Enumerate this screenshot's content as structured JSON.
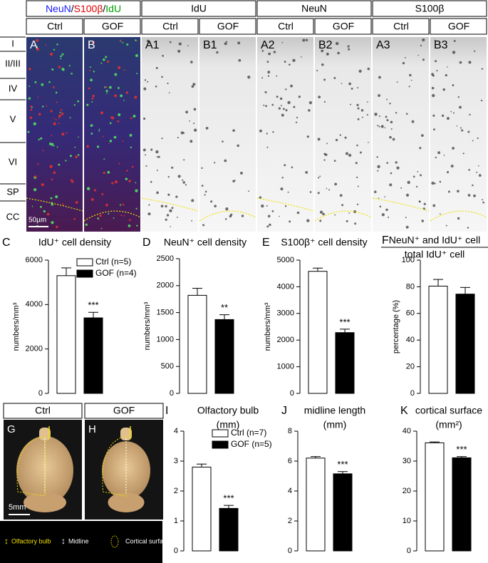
{
  "figure": {
    "merge_header": [
      {
        "text": "NeuN",
        "color": "#1a1aff"
      },
      {
        "text": "/",
        "color": "#000000"
      },
      {
        "text": "S100β",
        "color": "#e00000"
      },
      {
        "text": "/",
        "color": "#000000"
      },
      {
        "text": "IdU",
        "color": "#00a000"
      }
    ],
    "headers": [
      "IdU",
      "NeuN",
      "S100β"
    ],
    "conditions": [
      "Ctrl",
      "GOF",
      "Ctrl",
      "GOF",
      "Ctrl",
      "GOF",
      "Ctrl",
      "GOF"
    ],
    "layers": [
      "I",
      "II/III",
      "IV",
      "V",
      "VI",
      "SP",
      "CC"
    ],
    "panels": [
      "A",
      "B",
      "A1",
      "B1",
      "A2",
      "B2",
      "A3",
      "B3"
    ],
    "scale_bar": "50µm",
    "brain": {
      "conditions": [
        "Ctrl",
        "GOF"
      ],
      "panels": [
        "G",
        "H"
      ],
      "scale_bar": "5mm",
      "legend": [
        {
          "symbol": "↕",
          "text": "Olfactory bulb",
          "color": "#f0e000"
        },
        {
          "symbol": "↕",
          "text": "Midline",
          "color": "#ffffff"
        },
        {
          "text": "Cortical surface",
          "color": "#f0e000"
        }
      ]
    }
  },
  "chart_data": [
    {
      "type": "bar",
      "panel": "C",
      "title": "IdU⁺ cell density",
      "y_label": "numbers/mm³",
      "ylim": [
        0,
        6000
      ],
      "yticks": [
        0,
        2000,
        4000,
        6000
      ],
      "series": [
        {
          "name": "Ctrl (n=5)",
          "color": "#ffffff",
          "values": [
            5300
          ],
          "errors": [
            350
          ]
        },
        {
          "name": "GOF (n=4)",
          "color": "#000000",
          "values": [
            3400
          ],
          "errors": [
            250
          ]
        }
      ],
      "annotations": [
        "***"
      ]
    },
    {
      "type": "bar",
      "panel": "D",
      "title": "NeuN⁺ cell density",
      "y_label": "numbers/mm³",
      "ylim": [
        0,
        2500
      ],
      "yticks": [
        0,
        500,
        1000,
        1500,
        2000,
        2500
      ],
      "values": [
        1820,
        1370
      ],
      "errors": [
        130,
        90
      ],
      "colors": [
        "#ffffff",
        "#000000"
      ],
      "annotations": [
        "**"
      ]
    },
    {
      "type": "bar",
      "panel": "E",
      "title": "S100β⁺ cell density",
      "y_label": "numbers/mm³",
      "ylim": [
        0,
        5000
      ],
      "yticks": [
        0,
        1000,
        2000,
        3000,
        4000,
        5000
      ],
      "values": [
        4580,
        2280
      ],
      "errors": [
        120,
        130
      ],
      "colors": [
        "#ffffff",
        "#000000"
      ],
      "annotations": [
        "***"
      ]
    },
    {
      "type": "bar",
      "panel": "F",
      "title": "NeuN⁺ and IdU⁺ cell",
      "subtitle": "total IdU⁺ cell",
      "y_label": "percentage (%)",
      "ylim": [
        0,
        100
      ],
      "yticks": [
        0,
        20,
        40,
        60,
        80,
        100
      ],
      "values": [
        80.5,
        74.5
      ],
      "errors": [
        5,
        5
      ],
      "colors": [
        "#ffffff",
        "#000000"
      ]
    },
    {
      "type": "bar",
      "panel": "I",
      "title": "Olfactory bulb",
      "subtitle": "(mm)",
      "ylim": [
        0,
        4
      ],
      "yticks": [
        0,
        1,
        2,
        3,
        4
      ],
      "series": [
        {
          "name": "Ctrl (n=7)",
          "color": "#ffffff",
          "values": [
            2.8
          ],
          "errors": [
            0.1
          ]
        },
        {
          "name": "GOF (n=5)",
          "color": "#000000",
          "values": [
            1.42
          ],
          "errors": [
            0.1
          ]
        }
      ],
      "annotations": [
        "***"
      ]
    },
    {
      "type": "bar",
      "panel": "J",
      "title": "midline length",
      "subtitle": "(mm)",
      "ylim": [
        0,
        8
      ],
      "yticks": [
        0,
        2,
        4,
        6,
        8
      ],
      "values": [
        6.2,
        5.15
      ],
      "errors": [
        0.1,
        0.15
      ],
      "colors": [
        "#ffffff",
        "#000000"
      ],
      "annotations": [
        "***"
      ]
    },
    {
      "type": "bar",
      "panel": "K",
      "title": "cortical surface",
      "subtitle": "(mm²)",
      "ylim": [
        0,
        40
      ],
      "yticks": [
        0,
        10,
        20,
        30,
        40
      ],
      "values": [
        36.1,
        31.1
      ],
      "errors": [
        0.3,
        0.4
      ],
      "colors": [
        "#ffffff",
        "#000000"
      ],
      "annotations": [
        "***"
      ]
    }
  ]
}
